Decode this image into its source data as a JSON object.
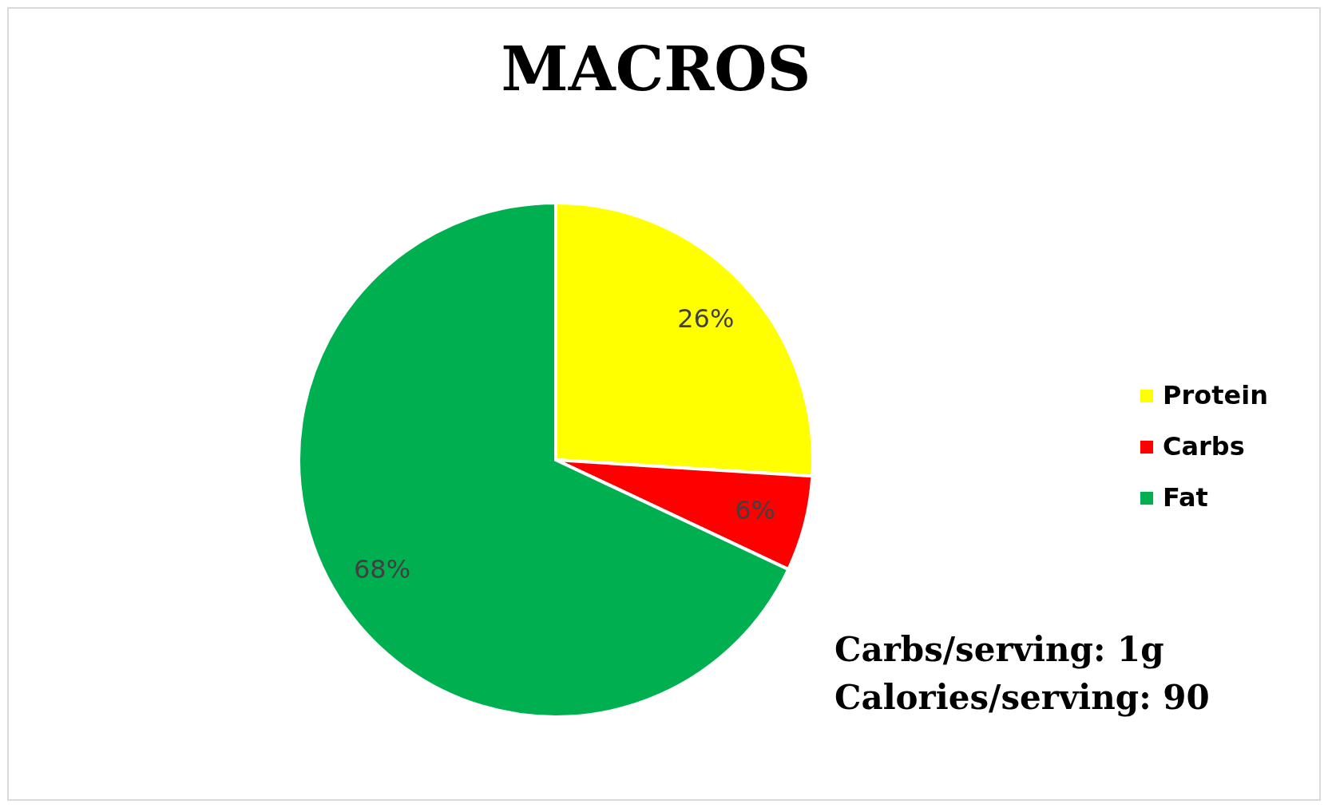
{
  "chart_data": {
    "type": "pie",
    "title": "MACROS",
    "categories": [
      "Protein",
      "Carbs",
      "Fat"
    ],
    "values": [
      26,
      6,
      68
    ],
    "colors": [
      "#ffff00",
      "#ff0000",
      "#00b050"
    ],
    "value_labels": [
      "26%",
      "6%",
      "68%"
    ],
    "legend": "right",
    "annotations": [
      "Carbs/serving: 1g",
      "Calories/serving: 90"
    ]
  }
}
